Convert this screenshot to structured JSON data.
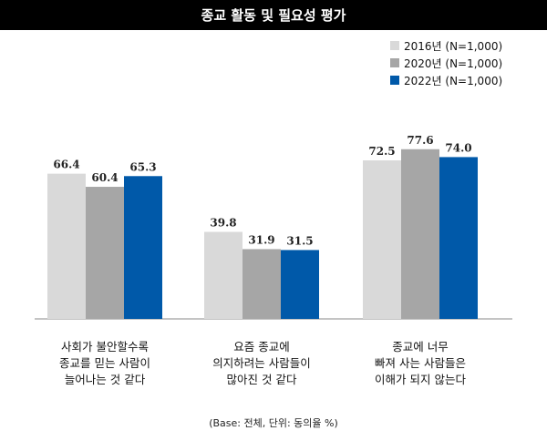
{
  "title": "종교 활동 및 필요성 평가",
  "footnote": "(Base: 전체, 단위: 동의율 %)",
  "colors": {
    "title_bg": "#000000",
    "axis": "#888888"
  },
  "chart_data": {
    "type": "bar",
    "title": "종교 활동 및 필요성 평가",
    "categories": [
      [
        "사회가 불안할수록",
        "종교를 믿는 사람이",
        "늘어나는 것 같다"
      ],
      [
        "요즘 종교에",
        "의지하려는 사람들이",
        "많아진 것 같다"
      ],
      [
        "종교에 너무",
        "빠져 사는 사람들은",
        "이해가 되지 않는다"
      ]
    ],
    "series": [
      {
        "name": "2016년 (N=1,000)",
        "color": "#d9d9d9",
        "values": [
          66.4,
          39.8,
          72.5
        ],
        "labels": [
          "66.4",
          "39.8",
          "72.5"
        ]
      },
      {
        "name": "2020년 (N=1,000)",
        "color": "#a6a6a6",
        "values": [
          60.4,
          31.9,
          77.6
        ],
        "labels": [
          "60.4",
          "31.9",
          "77.6"
        ]
      },
      {
        "name": "2022년 (N=1,000)",
        "color": "#0059a9",
        "values": [
          65.3,
          31.5,
          74.0
        ],
        "labels": [
          "65.3",
          "31.5",
          "74.0"
        ]
      }
    ],
    "ylim": [
      0,
      100
    ],
    "legend_position": "top-right",
    "grid": false
  }
}
